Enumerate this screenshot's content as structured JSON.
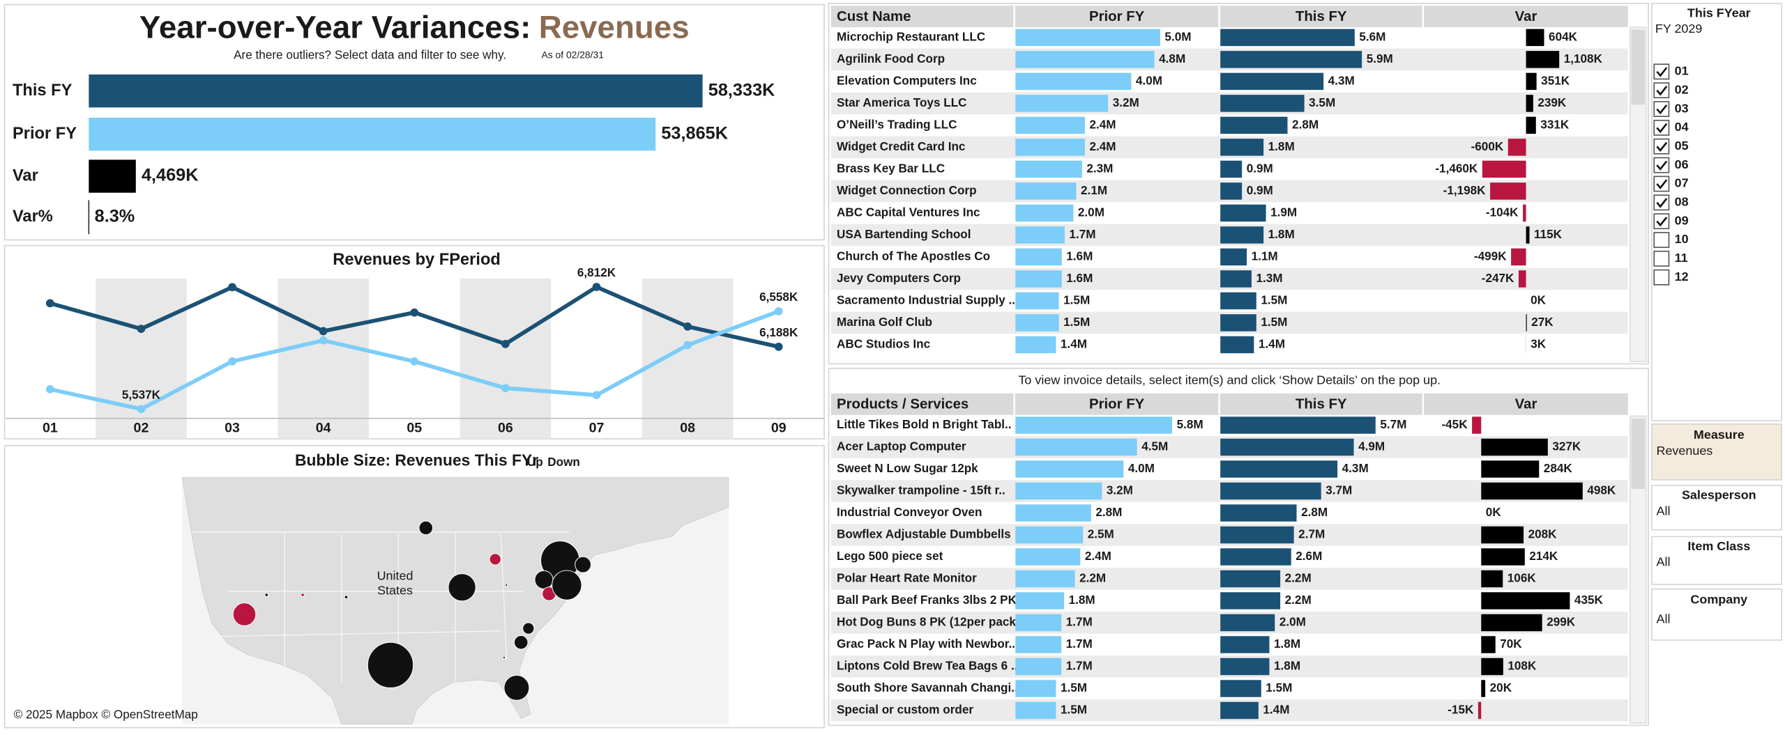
{
  "header": {
    "title": "Year-over-Year Variances:",
    "measure": "Revenues",
    "subtitle": "Are there outliers? Select data and filter to see why.",
    "as_of": "As of 02/28/31"
  },
  "chart_data": [
    {
      "type": "hbar",
      "categories": [
        "This FY",
        "Prior FY",
        "Var",
        "Var%"
      ],
      "values": [
        58333,
        53865,
        4469,
        8.3
      ],
      "value_labels": [
        "58,333K",
        "53,865K",
        "4,469K",
        "8.3%"
      ],
      "colors": [
        "#1b5174",
        "#7ccdf7",
        "#000000",
        "#000000"
      ],
      "xlim": [
        0,
        70000
      ]
    },
    {
      "type": "line",
      "title": "Revenues by FPeriod",
      "categories": [
        "01",
        "02",
        "03",
        "04",
        "05",
        "06",
        "07",
        "08",
        "09"
      ],
      "series": [
        {
          "color": "#1b5174",
          "values": [
            6642,
            6375,
            6810,
            6351,
            6545,
            6217,
            6812,
            6399,
            6188
          ],
          "value_labels": [
            null,
            null,
            null,
            null,
            null,
            null,
            "6,812K",
            null,
            "6,188K"
          ]
        },
        {
          "color": "#7ccdf7",
          "values": [
            5744,
            5537,
            6035,
            6254,
            6035,
            5756,
            5683,
            6205,
            6558
          ],
          "value_labels": [
            null,
            "5,537K",
            null,
            null,
            null,
            null,
            null,
            null,
            "6,558K"
          ]
        }
      ],
      "ylim": [
        5440,
        6900
      ]
    },
    {
      "type": "bubble_map",
      "title": "Bubble Size: Revenues This FYr",
      "legend": [
        {
          "label": "Up",
          "color": "#111111"
        },
        {
          "label": "Down",
          "color": "#b8163f"
        }
      ],
      "country_label": [
        "United",
        "States"
      ],
      "attribution": "© 2025 Mapbox © OpenStreetMap",
      "points": [
        {
          "lon": -92.2,
          "lat": 43.7,
          "value": 360,
          "down": false
        },
        {
          "lon": -82.8,
          "lat": 40.8,
          "value": 250,
          "down": true
        },
        {
          "lon": -74.0,
          "lat": 40.7,
          "value": 2890,
          "down": false
        },
        {
          "lon": -70.9,
          "lat": 40.3,
          "value": 490,
          "down": false
        },
        {
          "lon": -76.2,
          "lat": 38.9,
          "value": 640,
          "down": false
        },
        {
          "lon": -75.5,
          "lat": 37.6,
          "value": 360,
          "down": true
        },
        {
          "lon": -73.1,
          "lat": 38.4,
          "value": 1690,
          "down": false
        },
        {
          "lon": -87.3,
          "lat": 38.2,
          "value": 1440,
          "down": false
        },
        {
          "lon": -116.8,
          "lat": 35.7,
          "value": 1000,
          "down": true
        },
        {
          "lon": -97.0,
          "lat": 31.0,
          "value": 4000,
          "down": false
        },
        {
          "lon": -78.3,
          "lat": 34.4,
          "value": 250,
          "down": false
        },
        {
          "lon": -79.3,
          "lat": 33.1,
          "value": 360,
          "down": false
        },
        {
          "lon": -79.9,
          "lat": 28.9,
          "value": 1210,
          "down": false
        },
        {
          "lon": -113.8,
          "lat": 37.5,
          "value": 20,
          "down": false
        },
        {
          "lon": -108.9,
          "lat": 37.5,
          "value": 20,
          "down": true
        },
        {
          "lon": -103.0,
          "lat": 37.3,
          "value": 20,
          "down": false
        },
        {
          "lon": -81.3,
          "lat": 38.4,
          "value": 10,
          "down": false
        },
        {
          "lon": -81.6,
          "lat": 31.7,
          "value": 10,
          "down": false
        }
      ]
    },
    {
      "type": "table_bar",
      "category_label": "Cust Name",
      "categories": [
        "Microchip Restaurant LLC",
        "Agrilink Food Corp",
        "Elevation Computers Inc",
        "Star America Toys LLC",
        "O’Neill’s Trading LLC",
        "Widget Credit Card Inc",
        "Brass Key Bar LLC",
        "Widget Connection Corp",
        "ABC Capital Ventures Inc",
        "USA Bartending School",
        "Church of The Apostles Co",
        "Jevy Computers Corp",
        "Sacramento Industrial Supply ..",
        "Marina Golf Club",
        "ABC Studios Inc"
      ],
      "series": [
        {
          "name": "Prior FY",
          "color": "#7ccdf7",
          "xlim": [
            0,
            7
          ],
          "values": [
            5.0,
            4.8,
            4.0,
            3.2,
            2.4,
            2.4,
            2.3,
            2.1,
            2.0,
            1.7,
            1.6,
            1.6,
            1.5,
            1.5,
            1.4
          ],
          "value_labels": [
            "5.0M",
            "4.8M",
            "4.0M",
            "3.2M",
            "2.4M",
            "2.4M",
            "2.3M",
            "2.1M",
            "2.0M",
            "1.7M",
            "1.6M",
            "1.6M",
            "1.5M",
            "1.5M",
            "1.4M"
          ]
        },
        {
          "name": "This FY",
          "color": "#1b5174",
          "xlim": [
            0,
            8.4
          ],
          "values": [
            5.6,
            5.9,
            4.3,
            3.5,
            2.8,
            1.8,
            0.9,
            0.9,
            1.9,
            1.8,
            1.1,
            1.3,
            1.5,
            1.5,
            1.4
          ],
          "value_labels": [
            "5.6M",
            "5.9M",
            "4.3M",
            "3.5M",
            "2.8M",
            "1.8M",
            "0.9M",
            "0.9M",
            "1.9M",
            "1.8M",
            "1.1M",
            "1.3M",
            "1.5M",
            "1.5M",
            "1.4M"
          ]
        },
        {
          "name": "Var",
          "color": "#000000",
          "negative_color": "#b8163f",
          "xlim": [
            -3400,
            3400
          ],
          "values": [
            604,
            1108,
            351,
            239,
            331,
            -600,
            -1460,
            -1198,
            -104,
            115,
            -499,
            -247,
            0,
            27,
            3
          ],
          "value_labels": [
            "604K",
            "1,108K",
            "351K",
            "239K",
            "331K",
            "-600K",
            "-1,460K",
            "-1,198K",
            "-104K",
            "115K",
            "-499K",
            "-247K",
            "0K",
            "27K",
            "3K"
          ]
        }
      ]
    },
    {
      "type": "table_bar",
      "note": "To view invoice details, select item(s) and click ‘Show Details’ on the pop up.",
      "category_label": "Products / Services",
      "categories": [
        "Little Tikes Bold n Bright Tabl..",
        "Acer Laptop Computer",
        "Sweet N Low Sugar 12pk",
        "Skywalker trampoline - 15ft r..",
        "Industrial Conveyor Oven",
        "Bowflex Adjustable Dumbbells",
        "Lego 500 piece set",
        "Polar Heart Rate Monitor",
        "Ball Park Beef Franks 3lbs 2 PK",
        "Hot Dog Buns 8 PK (12per pack)",
        "Grac Pack N Play with Newbor..",
        "Liptons Cold Brew Tea Bags 6 ..",
        "South Shore Savannah Changi..",
        "Special or custom order"
      ],
      "series": [
        {
          "name": "Prior FY",
          "color": "#7ccdf7",
          "xlim": [
            0,
            7.5
          ],
          "values": [
            5.8,
            4.5,
            4.0,
            3.2,
            2.8,
            2.5,
            2.4,
            2.2,
            1.8,
            1.7,
            1.7,
            1.7,
            1.5,
            1.5
          ],
          "value_labels": [
            "5.8M",
            "4.5M",
            "4.0M",
            "3.2M",
            "2.8M",
            "2.5M",
            "2.4M",
            "2.2M",
            "1.8M",
            "1.7M",
            "1.7M",
            "1.7M",
            "1.5M",
            "1.5M"
          ]
        },
        {
          "name": "This FY",
          "color": "#1b5174",
          "xlim": [
            0,
            7.4
          ],
          "values": [
            5.7,
            4.9,
            4.3,
            3.7,
            2.8,
            2.7,
            2.6,
            2.2,
            2.2,
            2.0,
            1.8,
            1.8,
            1.5,
            1.4
          ],
          "value_labels": [
            "5.7M",
            "4.9M",
            "4.3M",
            "3.7M",
            "2.8M",
            "2.7M",
            "2.6M",
            "2.2M",
            "2.2M",
            "2.0M",
            "1.8M",
            "1.8M",
            "1.5M",
            "1.4M"
          ]
        },
        {
          "name": "Var",
          "color": "#000000",
          "negative_color": "#b8163f",
          "xlim": [
            -280,
            720
          ],
          "values": [
            -45,
            327,
            284,
            498,
            0,
            208,
            214,
            106,
            435,
            299,
            70,
            108,
            20,
            -15
          ],
          "value_labels": [
            "-45K",
            "327K",
            "284K",
            "498K",
            "0K",
            "208K",
            "214K",
            "106K",
            "435K",
            "299K",
            "70K",
            "108K",
            "20K",
            "-15K"
          ]
        }
      ]
    }
  ],
  "filters": {
    "fyear": {
      "title": "This FYear",
      "selected": "FY 2029",
      "options": [
        "01",
        "02",
        "03",
        "04",
        "05",
        "06",
        "07",
        "08",
        "09",
        "10",
        "11",
        "12"
      ],
      "checked": [
        true,
        true,
        true,
        true,
        true,
        true,
        true,
        true,
        true,
        false,
        false,
        false
      ]
    },
    "measure": {
      "title": "Measure",
      "value": "Revenues"
    },
    "salesperson": {
      "title": "Salesperson",
      "value": "All"
    },
    "item_class": {
      "title": "Item Class",
      "value": "All"
    },
    "company": {
      "title": "Company",
      "value": "All"
    }
  }
}
